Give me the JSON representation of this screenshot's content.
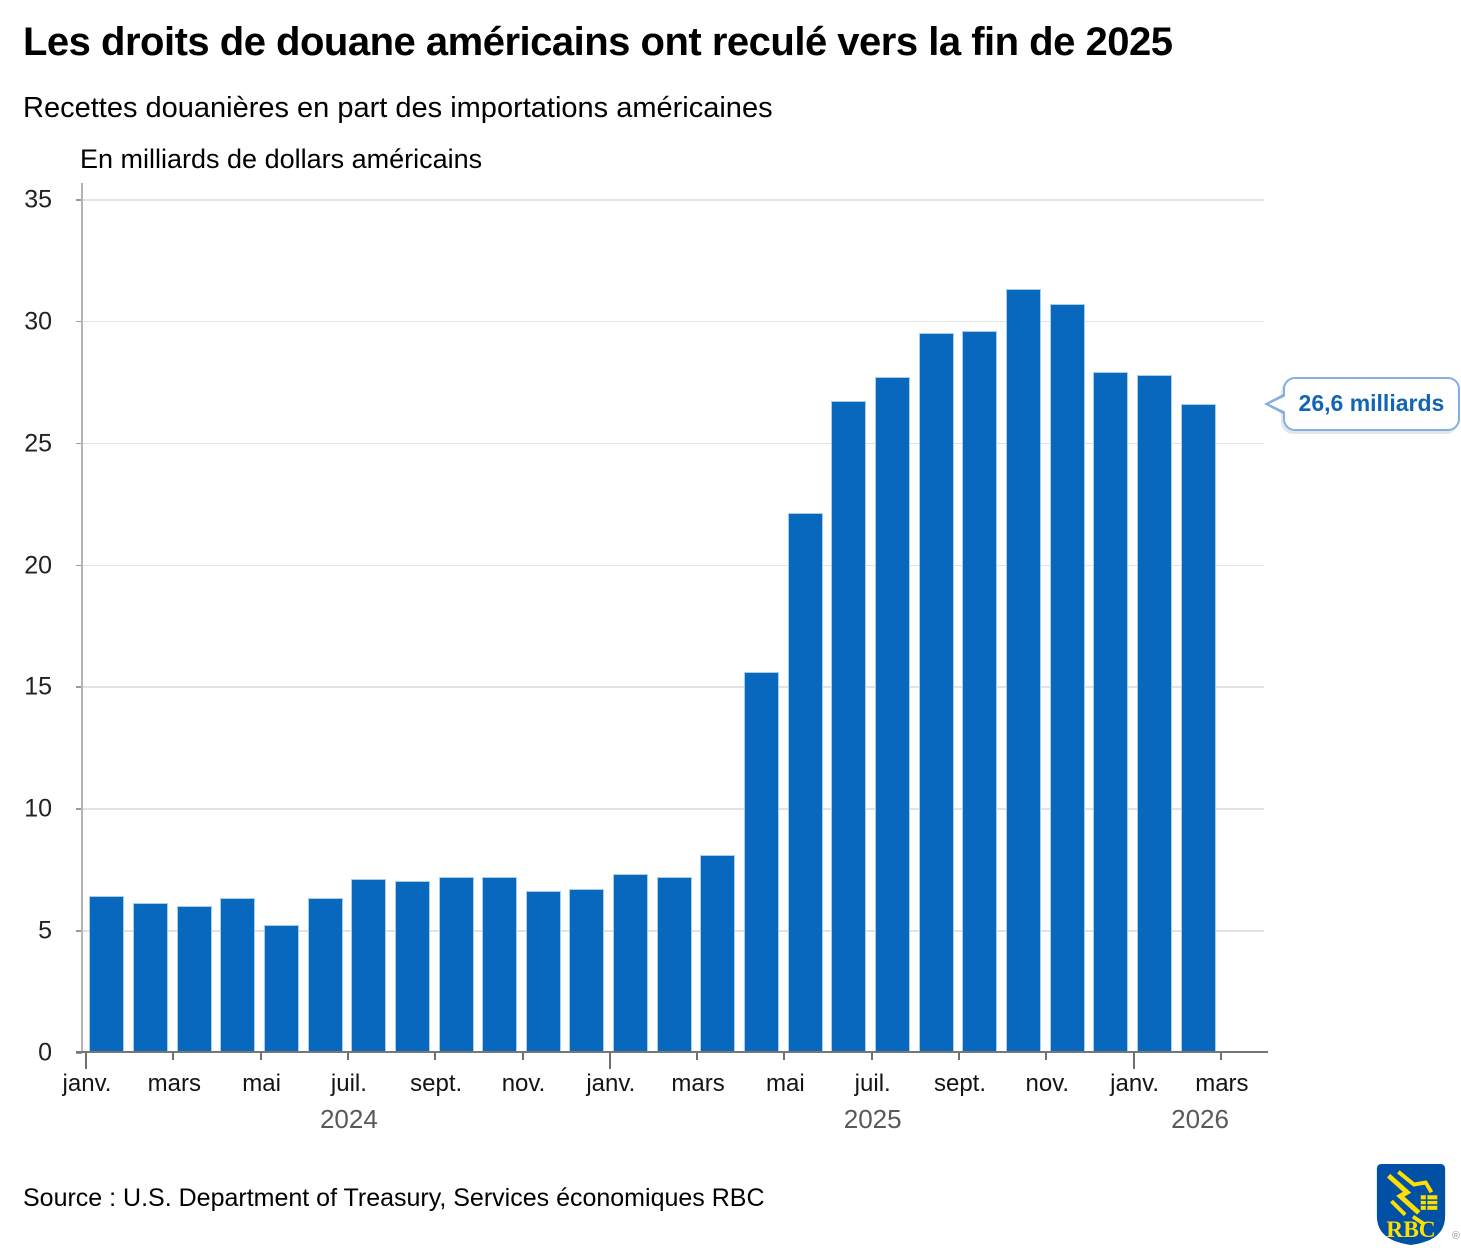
{
  "chart_data": {
    "type": "bar",
    "title": "Les droits de douane américains ont reculé vers la fin de 2025",
    "subtitle": "Recettes douanières en part des importations américaines",
    "ylabel": "En milliards de dollars américains",
    "ylim": [
      0,
      35
    ],
    "yticks": [
      0,
      5,
      10,
      15,
      20,
      25,
      30,
      35
    ],
    "grid": true,
    "categories": [
      "janv. 2024",
      "févr. 2024",
      "mars 2024",
      "avr. 2024",
      "mai 2024",
      "juin 2024",
      "juil. 2024",
      "août 2024",
      "sept. 2024",
      "oct. 2024",
      "nov. 2024",
      "déc. 2024",
      "janv. 2025",
      "févr. 2025",
      "mars 2025",
      "avr. 2025",
      "mai 2025",
      "juin 2025",
      "juil. 2025",
      "août 2025",
      "sept. 2025",
      "oct. 2025",
      "nov. 2025",
      "déc. 2025",
      "janv. 2026",
      "févr. 2026"
    ],
    "values": [
      6.4,
      6.1,
      6.0,
      6.3,
      5.2,
      6.3,
      7.1,
      7.0,
      7.2,
      7.2,
      6.6,
      6.7,
      7.3,
      7.2,
      8.1,
      15.6,
      22.1,
      26.7,
      27.7,
      29.5,
      29.6,
      31.3,
      30.7,
      27.9,
      27.8,
      26.6
    ],
    "xtick_labels": [
      {
        "label": "janv.",
        "month_index": 0,
        "year_start": true
      },
      {
        "label": "mars",
        "month_index": 2,
        "year_start": false
      },
      {
        "label": "mai",
        "month_index": 4,
        "year_start": false
      },
      {
        "label": "juil.",
        "month_index": 6,
        "year_start": false
      },
      {
        "label": "sept.",
        "month_index": 8,
        "year_start": false
      },
      {
        "label": "nov.",
        "month_index": 10,
        "year_start": false
      },
      {
        "label": "janv.",
        "month_index": 12,
        "year_start": true
      },
      {
        "label": "mars",
        "month_index": 14,
        "year_start": false
      },
      {
        "label": "mai",
        "month_index": 16,
        "year_start": false
      },
      {
        "label": "juil.",
        "month_index": 18,
        "year_start": false
      },
      {
        "label": "sept.",
        "month_index": 20,
        "year_start": false
      },
      {
        "label": "nov.",
        "month_index": 22,
        "year_start": false
      },
      {
        "label": "janv.",
        "month_index": 24,
        "year_start": true
      },
      {
        "label": "mars",
        "month_index": 26,
        "year_start": false
      }
    ],
    "year_labels": [
      {
        "label": "2024",
        "month_anchor": 6
      },
      {
        "label": "2025",
        "month_anchor": 18
      },
      {
        "label": "2026",
        "month_anchor": 25.5
      }
    ],
    "annotation": {
      "text": "26,6 milliards",
      "value": 26.6,
      "bar_index": 25
    },
    "legend": null,
    "colors": {
      "bar_fill": "#0768be",
      "bar_edge": "#a8ceeb",
      "callout_border": "#84afde",
      "callout_text": "#1265b5"
    }
  },
  "footer": {
    "source": "Source : U.S. Department of Treasury, Services économiques RBC",
    "logo": {
      "text": "RBC",
      "registered": "®",
      "shield_color": "#0051a5",
      "accent_color": "#fedf01"
    }
  }
}
